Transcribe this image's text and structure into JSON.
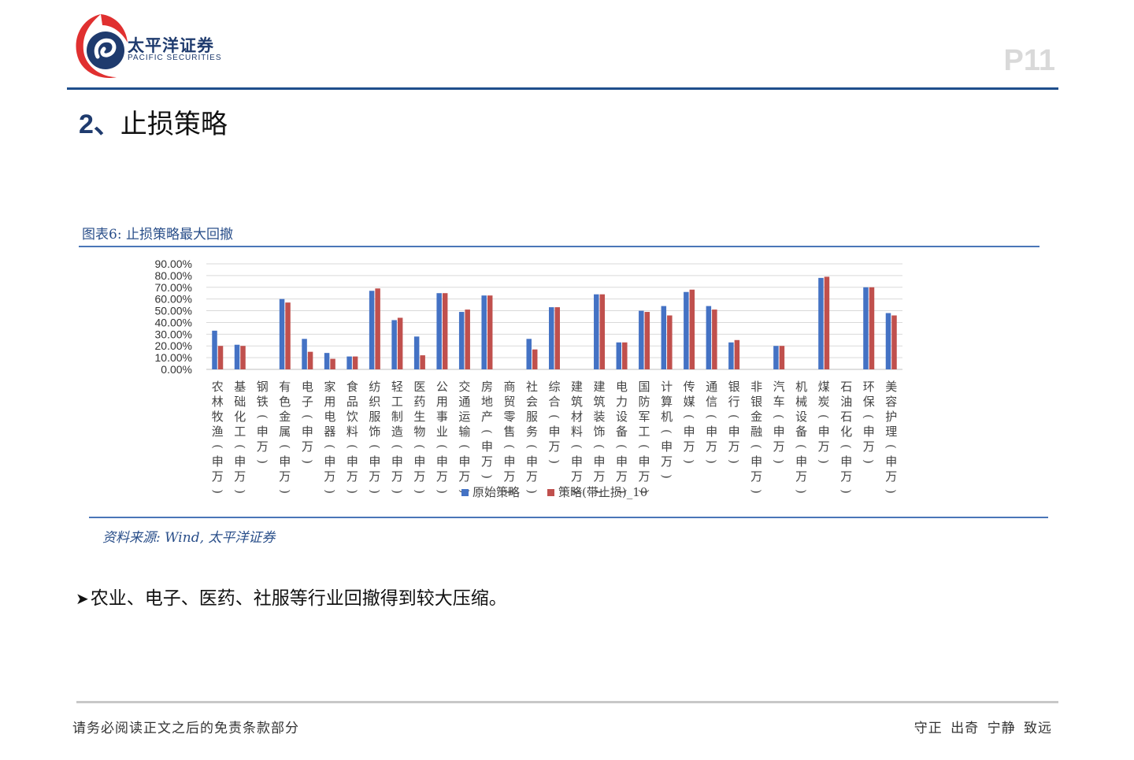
{
  "header": {
    "company_cn": "太平洋证券",
    "company_en": "PACIFIC SECURITIES",
    "page_number": "P11"
  },
  "section": {
    "number": "2、",
    "title": "止损策略"
  },
  "figure": {
    "caption": "图表6: 止损策略最大回撤",
    "source": "资料来源: Wind, 太平洋证券"
  },
  "bullet": {
    "text": "农业、电子、医药、社服等行业回撤得到较大压缩。"
  },
  "footer": {
    "disclaimer": "请务必阅读正文之后的免责条款部分",
    "motto": "守正 出奇 宁静 致远"
  },
  "colors": {
    "accent": "#1f4e8c",
    "series_original": "#4472c4",
    "series_stoploss": "#c0504d",
    "logo_red": "#e03030"
  },
  "chart_data": {
    "type": "bar",
    "title": "",
    "xlabel": "",
    "ylabel": "",
    "ylim": [
      0,
      90
    ],
    "yticks": [
      "0.00%",
      "10.00%",
      "20.00%",
      "30.00%",
      "40.00%",
      "50.00%",
      "60.00%",
      "70.00%",
      "80.00%",
      "90.00%"
    ],
    "grid": true,
    "legend_position": "bottom",
    "categories": [
      "农林牧渔(申万)",
      "基础化工(申万)",
      "钢铁(申万)",
      "有色金属(申万)",
      "电子(申万)",
      "家用电器(申万)",
      "食品饮料(申万)",
      "纺织服饰(申万)",
      "轻工制造(申万)",
      "医药生物(申万)",
      "公用事业(申万)",
      "交通运输(申万)",
      "房地产(申万)",
      "商贸零售(申万)",
      "社会服务(申万)",
      "综合(申万)",
      "建筑材料(申万)",
      "建筑装饰(申万)",
      "电力设备(申万)",
      "国防军工(申万)",
      "计算机(申万)",
      "传媒(申万)",
      "通信(申万)",
      "银行(申万)",
      "非银金融(申万)",
      "汽车(申万)",
      "机械设备(申万)",
      "煤炭(申万)",
      "石油石化(申万)",
      "环保(申万)",
      "美容护理(申万)"
    ],
    "series": [
      {
        "name": "原始策略",
        "color": "#4472c4",
        "values": [
          33,
          21,
          null,
          60,
          26,
          14,
          11,
          67,
          42,
          28,
          65,
          49,
          63,
          null,
          26,
          53,
          null,
          64,
          23,
          50,
          54,
          66,
          54,
          23,
          null,
          20,
          null,
          78,
          null,
          70,
          48
        ]
      },
      {
        "name": "策略(带止损)_10",
        "color": "#c0504d",
        "values": [
          20,
          20,
          null,
          57,
          15,
          9,
          11,
          69,
          44,
          12,
          65,
          51,
          63,
          null,
          17,
          53,
          null,
          64,
          23,
          49,
          46,
          68,
          51,
          25,
          null,
          20,
          null,
          79,
          null,
          70,
          46
        ]
      }
    ]
  }
}
